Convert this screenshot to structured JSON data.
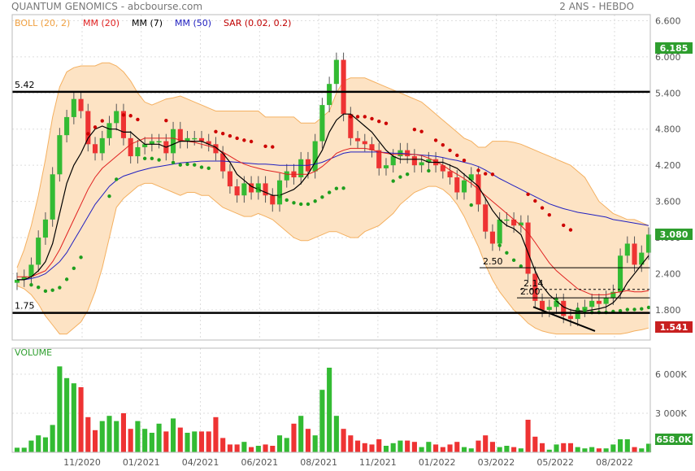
{
  "header": {
    "symbol": "QUANTUM GENOMICS",
    "source": "abcbourse.com",
    "period": "2 ANS - HEBDO"
  },
  "legend": [
    {
      "label": "BOLL (20, 2)",
      "color": "#f0a040"
    },
    {
      "label": "MM (20)",
      "color": "#e02020"
    },
    {
      "label": "MM (7)",
      "color": "#000000"
    },
    {
      "label": "MM (50)",
      "color": "#2020c0"
    },
    {
      "label": "SAR (0.02, 0.2)",
      "color": "#c00000"
    }
  ],
  "volume_panel": {
    "label": "VOLUME",
    "last_value": "658.0K"
  },
  "price_badges": {
    "upper": "6.185",
    "current": "3.080",
    "lower": "1.541"
  },
  "colors": {
    "up": "#33bb33",
    "down": "#ee3333",
    "boll_fill": "#fde3c4",
    "boll_line": "#f4b060",
    "badge_green": "#2e9e2e",
    "badge_red": "#c82020"
  },
  "chart_data": {
    "type": "candlestick",
    "x_ticks": [
      "11/2020",
      "01/2021",
      "04/2021",
      "06/2021",
      "08/2021",
      "11/2021",
      "01/2022",
      "03/2022",
      "05/2022",
      "08/2022"
    ],
    "y_ticks": [
      "1.800",
      "2.400",
      "3.000",
      "3.600",
      "4.200",
      "4.800",
      "5.400",
      "6.000",
      "6.600"
    ],
    "ylim": [
      1.3,
      6.7
    ],
    "volume_ticks": [
      "3 000K",
      "6 000K"
    ],
    "volume_ylim": [
      0,
      7500
    ],
    "horizontal_lines": [
      {
        "label": "5.42",
        "value": 5.42
      },
      {
        "label": "1.75",
        "value": 1.75
      }
    ],
    "support_lines": [
      {
        "label": "2.50",
        "value": 2.5
      },
      {
        "label": "2.14",
        "value": 2.14
      },
      {
        "label": "2.00",
        "value": 2.0
      }
    ],
    "close": [
      2.3,
      2.35,
      2.55,
      3.0,
      3.3,
      4.05,
      4.7,
      5.0,
      5.3,
      5.1,
      4.55,
      4.4,
      4.65,
      4.9,
      5.1,
      4.65,
      4.35,
      4.5,
      4.55,
      4.6,
      4.6,
      4.4,
      4.8,
      4.6,
      4.65,
      4.65,
      4.6,
      4.55,
      4.4,
      4.1,
      3.85,
      3.7,
      3.9,
      3.75,
      3.9,
      3.7,
      3.55,
      3.95,
      4.1,
      4.0,
      4.3,
      4.1,
      4.6,
      5.2,
      5.55,
      5.95,
      5.05,
      4.65,
      4.6,
      4.55,
      4.45,
      4.15,
      4.2,
      4.35,
      4.45,
      4.35,
      4.2,
      4.25,
      4.3,
      4.2,
      4.1,
      4.0,
      3.75,
      3.95,
      4.05,
      3.55,
      3.1,
      2.9,
      3.3,
      3.3,
      3.2,
      3.25,
      2.4,
      1.95,
      1.8,
      1.85,
      1.95,
      1.7,
      1.65,
      1.8,
      1.85,
      1.95,
      1.9,
      2.0,
      2.1,
      2.7,
      2.9,
      2.55,
      2.75,
      3.05
    ],
    "volume": [
      350,
      350,
      900,
      1300,
      1150,
      2100,
      6600,
      5700,
      5300,
      5000,
      2700,
      1700,
      2400,
      2800,
      2400,
      3000,
      1800,
      2400,
      1800,
      1500,
      2200,
      1600,
      2600,
      1900,
      1500,
      1600,
      1600,
      1600,
      2700,
      1100,
      600,
      600,
      800,
      400,
      500,
      600,
      500,
      1300,
      1100,
      2200,
      2800,
      1800,
      1300,
      4800,
      6500,
      2800,
      1800,
      1300,
      900,
      700,
      600,
      1000,
      500,
      700,
      900,
      900,
      800,
      400,
      800,
      600,
      400,
      600,
      800,
      400,
      300,
      900,
      1300,
      800,
      400,
      500,
      400,
      300,
      2500,
      1200,
      700,
      200,
      600,
      700,
      700,
      400,
      300,
      400,
      300,
      300,
      600,
      1000,
      1000,
      400,
      300,
      658
    ],
    "boll_upper": [
      2.5,
      2.8,
      3.2,
      3.7,
      4.3,
      5.0,
      5.5,
      5.75,
      5.82,
      5.85,
      5.85,
      5.85,
      5.9,
      5.9,
      5.85,
      5.75,
      5.6,
      5.4,
      5.25,
      5.2,
      5.25,
      5.3,
      5.32,
      5.35,
      5.3,
      5.25,
      5.2,
      5.15,
      5.1,
      5.1,
      5.1,
      5.1,
      5.1,
      5.1,
      5.1,
      5.0,
      5.0,
      5.0,
      5.0,
      5.0,
      4.9,
      4.9,
      4.9,
      5.0,
      5.1,
      5.4,
      5.6,
      5.65,
      5.65,
      5.65,
      5.6,
      5.55,
      5.5,
      5.45,
      5.4,
      5.35,
      5.3,
      5.25,
      5.15,
      5.05,
      4.95,
      4.85,
      4.75,
      4.65,
      4.6,
      4.5,
      4.5,
      4.6,
      4.6,
      4.6,
      4.58,
      4.55,
      4.5,
      4.45,
      4.4,
      4.35,
      4.3,
      4.25,
      4.2,
      4.1,
      4.0,
      3.8,
      3.6,
      3.5,
      3.4,
      3.35,
      3.3,
      3.3,
      3.25,
      3.2
    ],
    "boll_lower": [
      2.2,
      2.15,
      2.05,
      1.9,
      1.7,
      1.55,
      1.4,
      1.4,
      1.5,
      1.6,
      1.8,
      2.1,
      2.5,
      3.0,
      3.5,
      3.65,
      3.75,
      3.85,
      3.9,
      3.9,
      3.85,
      3.8,
      3.75,
      3.7,
      3.75,
      3.75,
      3.7,
      3.7,
      3.6,
      3.5,
      3.45,
      3.4,
      3.35,
      3.35,
      3.4,
      3.35,
      3.3,
      3.2,
      3.1,
      3.0,
      2.95,
      2.95,
      3.0,
      3.05,
      3.1,
      3.1,
      3.05,
      3.0,
      3.0,
      3.1,
      3.15,
      3.2,
      3.3,
      3.4,
      3.55,
      3.65,
      3.75,
      3.8,
      3.85,
      3.85,
      3.8,
      3.7,
      3.55,
      3.35,
      3.1,
      2.85,
      2.55,
      2.3,
      2.1,
      1.95,
      1.8,
      1.7,
      1.58,
      1.5,
      1.45,
      1.42,
      1.4,
      1.4,
      1.4,
      1.4,
      1.4,
      1.4,
      1.4,
      1.4,
      1.4,
      1.4,
      1.42,
      1.45,
      1.47,
      1.5
    ],
    "mm7": [
      2.3,
      2.3,
      2.35,
      2.45,
      2.6,
      2.9,
      3.4,
      3.9,
      4.2,
      4.4,
      4.65,
      4.8,
      4.85,
      4.8,
      4.8,
      4.75,
      4.75,
      4.65,
      4.55,
      4.55,
      4.55,
      4.5,
      4.55,
      4.6,
      4.6,
      4.6,
      4.6,
      4.55,
      4.5,
      4.4,
      4.25,
      4.05,
      3.95,
      3.85,
      3.8,
      3.75,
      3.7,
      3.7,
      3.75,
      3.8,
      3.9,
      4.05,
      4.25,
      4.45,
      4.75,
      4.95,
      5.05,
      5.05,
      4.95,
      4.85,
      4.75,
      4.6,
      4.45,
      4.35,
      4.3,
      4.3,
      4.3,
      4.3,
      4.25,
      4.25,
      4.25,
      4.2,
      4.15,
      4.05,
      3.95,
      3.85,
      3.65,
      3.45,
      3.3,
      3.2,
      3.15,
      3.05,
      2.75,
      2.45,
      2.2,
      2.05,
      1.95,
      1.85,
      1.8,
      1.78,
      1.78,
      1.8,
      1.82,
      1.85,
      1.92,
      2.05,
      2.25,
      2.4,
      2.55,
      2.7
    ],
    "mm20": [
      2.35,
      2.35,
      2.35,
      2.4,
      2.45,
      2.6,
      2.8,
      3.05,
      3.3,
      3.55,
      3.8,
      4.0,
      4.15,
      4.25,
      4.35,
      4.45,
      4.55,
      4.6,
      4.65,
      4.65,
      4.65,
      4.65,
      4.65,
      4.62,
      4.6,
      4.58,
      4.55,
      4.52,
      4.48,
      4.42,
      4.35,
      4.28,
      4.22,
      4.18,
      4.15,
      4.12,
      4.1,
      4.08,
      4.05,
      4.05,
      4.05,
      4.05,
      4.1,
      4.18,
      4.28,
      4.4,
      4.45,
      4.48,
      4.48,
      4.48,
      4.46,
      4.42,
      4.4,
      4.38,
      4.38,
      4.38,
      4.38,
      4.36,
      4.32,
      4.26,
      4.2,
      4.12,
      4.05,
      3.98,
      3.9,
      3.8,
      3.7,
      3.6,
      3.5,
      3.4,
      3.3,
      3.2,
      3.08,
      2.92,
      2.75,
      2.58,
      2.45,
      2.35,
      2.25,
      2.15,
      2.1,
      2.05,
      2.05,
      2.05,
      2.08,
      2.1,
      2.12,
      2.1,
      2.1,
      2.12
    ],
    "mm50": [
      2.3,
      2.3,
      2.32,
      2.35,
      2.4,
      2.5,
      2.6,
      2.75,
      2.95,
      3.15,
      3.35,
      3.55,
      3.7,
      3.85,
      3.95,
      4.02,
      4.06,
      4.1,
      4.13,
      4.16,
      4.18,
      4.2,
      4.22,
      4.24,
      4.25,
      4.26,
      4.27,
      4.27,
      4.27,
      4.27,
      4.26,
      4.25,
      4.24,
      4.23,
      4.22,
      4.22,
      4.21,
      4.2,
      4.2,
      4.2,
      4.2,
      4.2,
      4.22,
      4.25,
      4.3,
      4.35,
      4.4,
      4.42,
      4.42,
      4.42,
      4.42,
      4.42,
      4.41,
      4.4,
      4.4,
      4.39,
      4.38,
      4.37,
      4.36,
      4.35,
      4.33,
      4.3,
      4.28,
      4.25,
      4.22,
      4.18,
      4.12,
      4.05,
      3.98,
      3.92,
      3.86,
      3.8,
      3.74,
      3.68,
      3.62,
      3.56,
      3.52,
      3.48,
      3.45,
      3.42,
      3.4,
      3.38,
      3.36,
      3.34,
      3.3,
      3.28,
      3.26,
      3.24,
      3.22,
      3.2
    ]
  }
}
